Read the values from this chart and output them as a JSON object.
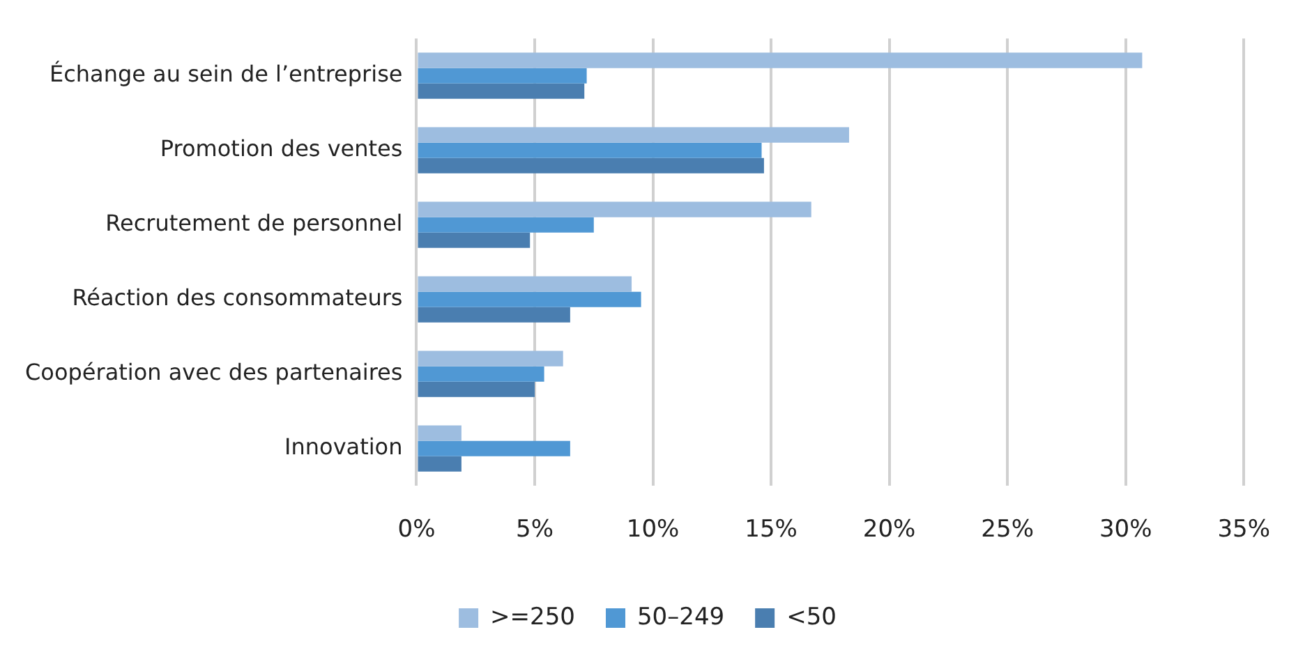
{
  "chart_data": {
    "type": "bar",
    "orientation": "horizontal",
    "categories": [
      "Échange au sein de l’entreprise",
      "Promotion des ventes",
      "Recrutement de personnel",
      "Réaction des consommateurs",
      "Coopération avec des partenaires",
      "Innovation"
    ],
    "series": [
      {
        "name": ">=250",
        "color": "#9dbde0",
        "values": [
          30.7,
          18.3,
          16.7,
          9.1,
          6.2,
          1.9
        ]
      },
      {
        "name": "50–249",
        "color": "#5098d4",
        "values": [
          7.2,
          14.6,
          7.5,
          9.5,
          5.4,
          6.5
        ]
      },
      {
        "name": "<50",
        "color": "#4a7eb0",
        "values": [
          7.1,
          14.7,
          4.8,
          6.5,
          5.0,
          1.9
        ]
      }
    ],
    "xlim": [
      0,
      35
    ],
    "xticks": [
      {
        "value": 0,
        "label": "0%"
      },
      {
        "value": 5,
        "label": "5%"
      },
      {
        "value": 10,
        "label": "10%"
      },
      {
        "value": 15,
        "label": "15%"
      },
      {
        "value": 20,
        "label": "20%"
      },
      {
        "value": 25,
        "label": "25%"
      },
      {
        "value": 30,
        "label": "30%"
      },
      {
        "value": 35,
        "label": "35%"
      }
    ],
    "grid": "x",
    "legend": "bottom"
  }
}
